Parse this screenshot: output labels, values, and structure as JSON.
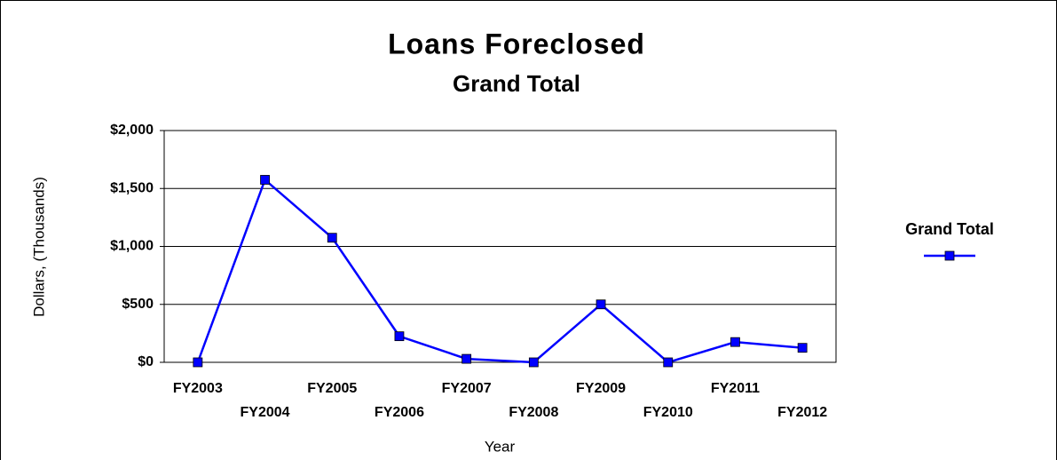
{
  "chart_data": {
    "type": "line",
    "title": "Loans Foreclosed",
    "subtitle": "Grand Total",
    "x_label": "Year",
    "y_label": "Dollars, (Thousands)",
    "categories": [
      "FY2003",
      "FY2004",
      "FY2005",
      "FY2006",
      "FY2007",
      "FY2008",
      "FY2009",
      "FY2010",
      "FY2011",
      "FY2012"
    ],
    "series": [
      {
        "name": "Grand Total",
        "color": "#0000ff",
        "values": [
          0,
          1575,
          1075,
          225,
          30,
          0,
          500,
          0,
          175,
          125
        ]
      }
    ],
    "ylim": [
      0,
      2000
    ],
    "yticks": [
      {
        "value": 0,
        "label": "$0"
      },
      {
        "value": 500,
        "label": "$500"
      },
      {
        "value": 1000,
        "label": "$1,000"
      },
      {
        "value": 1500,
        "label": "$1,500"
      },
      {
        "value": 2000,
        "label": "$2,000"
      }
    ],
    "grid": true,
    "legend": "right"
  }
}
